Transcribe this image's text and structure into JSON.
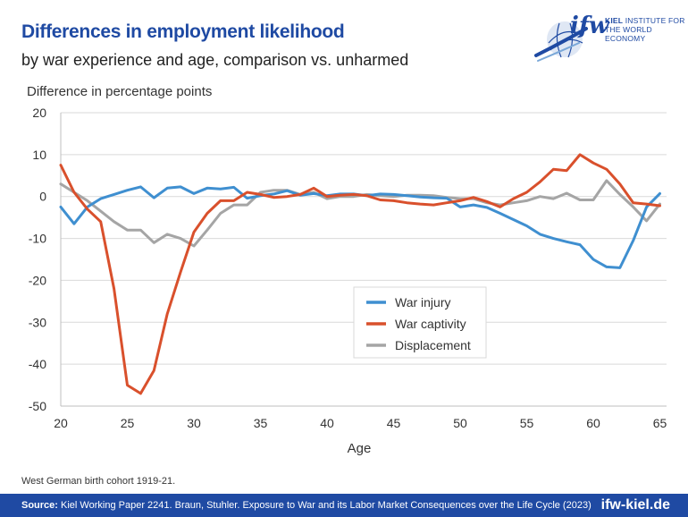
{
  "header": {
    "title": "Differences in employment likelihood",
    "subtitle": "by war experience and age, comparison vs. unharmed"
  },
  "logo": {
    "mark": "ifw",
    "line1_bold": "KIEL",
    "line1_rest": " INSTITUTE FOR",
    "line2": "THE WORLD ECONOMY"
  },
  "chart_data": {
    "type": "line",
    "ylabel": "Difference in percentage points",
    "xlabel": "Age",
    "xlim": [
      20,
      65.5
    ],
    "ylim": [
      -50,
      20
    ],
    "x_ticks": [
      20,
      25,
      30,
      35,
      40,
      45,
      50,
      55,
      60,
      65
    ],
    "y_ticks": [
      20,
      10,
      0,
      -10,
      -20,
      -30,
      -40,
      -50
    ],
    "grid": "horizontal",
    "legend_position": "center-right",
    "x": [
      20,
      21,
      22,
      23,
      24,
      25,
      26,
      27,
      28,
      29,
      30,
      31,
      32,
      33,
      34,
      35,
      36,
      37,
      38,
      39,
      40,
      41,
      42,
      43,
      44,
      45,
      46,
      47,
      48,
      49,
      50,
      51,
      52,
      53,
      54,
      55,
      56,
      57,
      58,
      59,
      60,
      61,
      62,
      63,
      64,
      65
    ],
    "series": [
      {
        "name": "War injury",
        "color": "#3f8fd0",
        "values": [
          -2.5,
          -6.5,
          -2.5,
          -0.5,
          0.5,
          1.5,
          2.3,
          -0.3,
          2.0,
          2.3,
          0.7,
          2.0,
          1.8,
          2.2,
          -0.4,
          0.2,
          0.6,
          1.4,
          0.3,
          0.7,
          0.2,
          0.6,
          0.6,
          0.2,
          0.6,
          0.5,
          0.2,
          -0.1,
          -0.3,
          -0.4,
          -2.5,
          -2.0,
          -2.6,
          -4.0,
          -5.5,
          -7.0,
          -9.0,
          -10.0,
          -10.8,
          -11.5,
          -15.0,
          -16.8,
          -17.0,
          -10.5,
          -2.5,
          0.7
        ]
      },
      {
        "name": "War captivity",
        "color": "#d9502c",
        "values": [
          7.5,
          1.0,
          -3.0,
          -6.0,
          -22.0,
          -45.0,
          -47.0,
          -41.5,
          -28.0,
          -18.0,
          -8.5,
          -4.0,
          -1.0,
          -1.0,
          1.0,
          0.5,
          -0.2,
          0.0,
          0.5,
          2.0,
          0.0,
          0.3,
          0.5,
          0.2,
          -0.8,
          -1.0,
          -1.5,
          -1.8,
          -2.0,
          -1.5,
          -1.0,
          -0.2,
          -1.2,
          -2.5,
          -0.5,
          1.0,
          3.5,
          6.5,
          6.2,
          10.0,
          8.0,
          6.5,
          3.0,
          -1.5,
          -1.8,
          -2.2
        ]
      },
      {
        "name": "Displacement",
        "color": "#a5a5a5",
        "values": [
          3.0,
          1.0,
          -1.0,
          -3.5,
          -6.0,
          -8.0,
          -8.0,
          -11.0,
          -9.0,
          -10.0,
          -11.8,
          -8.0,
          -4.0,
          -2.0,
          -2.0,
          1.0,
          1.5,
          1.5,
          0.5,
          1.0,
          -0.5,
          0.0,
          0.0,
          0.5,
          0.2,
          0.0,
          0.3,
          0.3,
          0.2,
          -0.2,
          -0.5,
          -0.5,
          -1.5,
          -2.0,
          -1.5,
          -1.0,
          0.0,
          -0.5,
          0.8,
          -0.8,
          -0.8,
          3.8,
          0.5,
          -2.5,
          -5.8,
          -1.8
        ]
      }
    ]
  },
  "note": "West German birth cohort 1919-21.",
  "footer": {
    "source_label": "Source:",
    "source_text": " Kiel Working Paper 2241. Braun, Stuhler. Exposure to War and its Labor Market Consequences over the Life Cycle (2023)",
    "site": "ifw-kiel.de"
  }
}
